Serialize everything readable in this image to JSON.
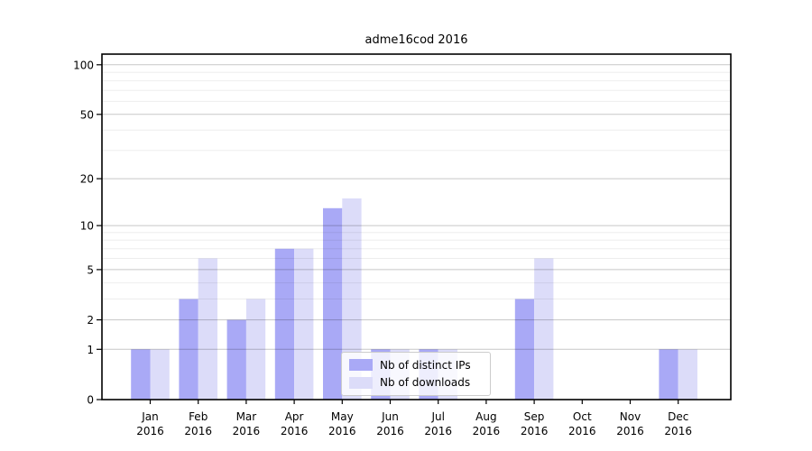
{
  "title": "adme16cod 2016",
  "chart_data": {
    "type": "bar",
    "title": "adme16cod 2016",
    "categories": [
      "Jan 2016",
      "Feb 2016",
      "Mar 2016",
      "Apr 2016",
      "May 2016",
      "Jun 2016",
      "Jul 2016",
      "Aug 2016",
      "Sep 2016",
      "Oct 2016",
      "Nov 2016",
      "Dec 2016"
    ],
    "series": [
      {
        "name": "Nb of distinct IPs",
        "color": "#a9a9f6",
        "values": [
          1,
          3,
          2,
          7,
          13,
          1,
          1,
          0,
          3,
          0,
          0,
          1
        ]
      },
      {
        "name": "Nb of downloads",
        "color": "#dcdcf9",
        "values": [
          1,
          6,
          3,
          7,
          15,
          1,
          1,
          0,
          6,
          0,
          0,
          1
        ]
      }
    ],
    "xlabel": "",
    "ylabel": "",
    "yscale": "log1p",
    "ylim": [
      0,
      116
    ],
    "yticks": [
      100,
      50,
      20,
      10,
      5,
      2,
      1,
      0
    ],
    "minor_gridlines": [
      3,
      4,
      6,
      7,
      8,
      9,
      30,
      40,
      60,
      70,
      80,
      90
    ],
    "grid": "on",
    "legend_position": "lower-center",
    "colors": {
      "axis": "#000000",
      "major_grid": "rgba(0,0,0,0.22)",
      "minor_grid": "rgba(0,0,0,0.07)",
      "background": "#ffffff"
    }
  }
}
